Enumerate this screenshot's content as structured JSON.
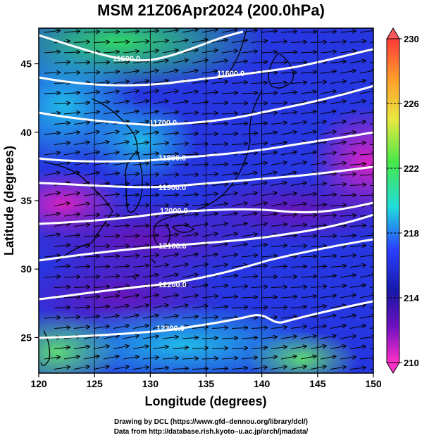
{
  "title": "MSM 21Z06Apr2024 (200.0hPa)",
  "xaxis": {
    "label": "Longitude (degrees)",
    "ticks": [
      "120",
      "125",
      "130",
      "135",
      "140",
      "145",
      "150"
    ],
    "range": [
      120,
      150
    ]
  },
  "yaxis": {
    "label": "Latitude  (degrees)",
    "ticks": [
      "25",
      "30",
      "35",
      "40",
      "45"
    ],
    "range": [
      22.4,
      47.6
    ]
  },
  "colorbar": {
    "ticks": [
      "230",
      "226",
      "222",
      "218",
      "214",
      "210"
    ],
    "range": [
      210,
      230
    ],
    "colors": [
      "#ff3a3a",
      "#ff9a2a",
      "#e8e840",
      "#48e848",
      "#20dcdc",
      "#2a40ff",
      "#1818a8",
      "#7010c0",
      "#ff30c8"
    ]
  },
  "contours": [
    {
      "label": "11500.0"
    },
    {
      "label": "11600.0"
    },
    {
      "label": "11700.0"
    },
    {
      "label": "11800.0"
    },
    {
      "label": "11900.0"
    },
    {
      "label": "12000.0"
    },
    {
      "label": "12100.0"
    },
    {
      "label": "12200.0"
    },
    {
      "label": "12300.0"
    }
  ],
  "credit_line1": "Drawing by DCL (https://www.gfd–dennou.org/library/dcl/)",
  "credit_line2": "Data from http://database.rish.kyoto–u.ac.jp/arch/jmadata/"
}
